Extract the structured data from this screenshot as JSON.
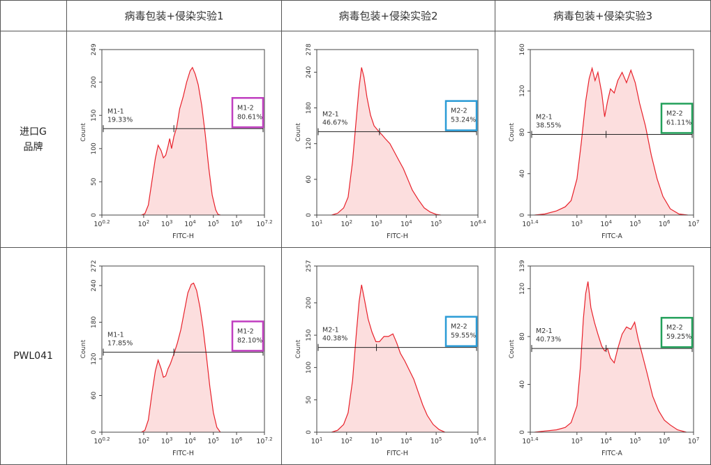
{
  "table": {
    "columns": [
      "病毒包装+侵染实验1",
      "病毒包装+侵染实验2",
      "病毒包装+侵染实验3"
    ],
    "rows": [
      {
        "label_line1": "进口G",
        "label_line2": "品牌"
      },
      {
        "label_line1": "PWL041",
        "label_line2": ""
      }
    ]
  },
  "colors": {
    "curve": "#e8202a",
    "fill": "#fcdede",
    "magenta": "#c03fc0",
    "blue": "#2a9bd6",
    "green": "#22a05a",
    "axis": "#444444"
  },
  "chart_data": [
    {
      "type": "area",
      "row": 0,
      "col": 0,
      "title": "",
      "xlabel": "FITC-H",
      "ylabel": "Count",
      "x_scale": "log10",
      "xlim_exp": [
        0.2,
        7.2
      ],
      "ylim": [
        0,
        249
      ],
      "x_ticks": [
        {
          "base": "10",
          "exp": "0.2"
        },
        {
          "base": "10",
          "exp": "2"
        },
        {
          "base": "10",
          "exp": "3"
        },
        {
          "base": "10",
          "exp": "4"
        },
        {
          "base": "10",
          "exp": "5"
        },
        {
          "base": "10",
          "exp": "6"
        },
        {
          "base": "10",
          "exp": "7.2"
        }
      ],
      "x_tick_pos": [
        0.2,
        2,
        3,
        4,
        5,
        6,
        7.2
      ],
      "y_ticks": [
        "0",
        "50",
        "100",
        "150",
        "200",
        "249"
      ],
      "y_tick_pos": [
        0,
        50,
        100,
        150,
        200,
        249
      ],
      "gate_y": 130,
      "gate_start": 0.2,
      "gate_split": 3.3,
      "gate_end": 7.2,
      "gate1": {
        "name": "M1-1",
        "percent": "19.33%"
      },
      "gate2": {
        "name": "M1-2",
        "percent": "80.61%",
        "box_color": "magenta"
      },
      "points": [
        [
          1.9,
          0
        ],
        [
          2.05,
          2
        ],
        [
          2.2,
          15
        ],
        [
          2.35,
          50
        ],
        [
          2.5,
          85
        ],
        [
          2.62,
          105
        ],
        [
          2.75,
          97
        ],
        [
          2.85,
          86
        ],
        [
          2.95,
          90
        ],
        [
          3.05,
          104
        ],
        [
          3.12,
          115
        ],
        [
          3.2,
          100
        ],
        [
          3.3,
          118
        ],
        [
          3.42,
          132
        ],
        [
          3.55,
          160
        ],
        [
          3.7,
          178
        ],
        [
          3.85,
          200
        ],
        [
          4.0,
          217
        ],
        [
          4.1,
          222
        ],
        [
          4.22,
          212
        ],
        [
          4.35,
          196
        ],
        [
          4.5,
          165
        ],
        [
          4.65,
          122
        ],
        [
          4.8,
          72
        ],
        [
          4.95,
          30
        ],
        [
          5.1,
          8
        ],
        [
          5.2,
          1
        ],
        [
          5.3,
          0
        ]
      ]
    },
    {
      "type": "area",
      "row": 0,
      "col": 1,
      "title": "",
      "xlabel": "FITC-H",
      "ylabel": "Count",
      "x_scale": "log10",
      "xlim_exp": [
        1,
        6.4
      ],
      "ylim": [
        0,
        278
      ],
      "x_ticks": [
        {
          "base": "10",
          "exp": "1"
        },
        {
          "base": "10",
          "exp": "2"
        },
        {
          "base": "10",
          "exp": "3"
        },
        {
          "base": "10",
          "exp": "4"
        },
        {
          "base": "10",
          "exp": "5"
        },
        {
          "base": "10",
          "exp": "6.4"
        }
      ],
      "x_tick_pos": [
        1,
        2,
        3,
        4,
        5,
        6.4
      ],
      "y_ticks": [
        "0",
        "60",
        "120",
        "180",
        "240",
        "278"
      ],
      "y_tick_pos": [
        0,
        60,
        120,
        180,
        240,
        278
      ],
      "gate_y": 140,
      "gate_start": 1,
      "gate_split": 3.1,
      "gate_end": 6.4,
      "gate1": {
        "name": "M2-1",
        "percent": "46.67%"
      },
      "gate2": {
        "name": "M2-2",
        "percent": "53.24%",
        "box_color": "blue"
      },
      "points": [
        [
          1.5,
          0
        ],
        [
          1.7,
          3
        ],
        [
          1.9,
          12
        ],
        [
          2.05,
          30
        ],
        [
          2.2,
          90
        ],
        [
          2.32,
          160
        ],
        [
          2.42,
          215
        ],
        [
          2.5,
          248
        ],
        [
          2.58,
          232
        ],
        [
          2.68,
          198
        ],
        [
          2.8,
          168
        ],
        [
          2.92,
          150
        ],
        [
          3.05,
          142
        ],
        [
          3.18,
          135
        ],
        [
          3.3,
          128
        ],
        [
          3.45,
          120
        ],
        [
          3.6,
          106
        ],
        [
          3.75,
          92
        ],
        [
          3.9,
          78
        ],
        [
          4.05,
          60
        ],
        [
          4.2,
          42
        ],
        [
          4.4,
          26
        ],
        [
          4.6,
          12
        ],
        [
          4.8,
          5
        ],
        [
          5.0,
          1
        ],
        [
          5.15,
          0
        ]
      ]
    },
    {
      "type": "area",
      "row": 0,
      "col": 2,
      "title": "",
      "xlabel": "FITC-A",
      "ylabel": "Count",
      "x_scale": "log10",
      "xlim_exp": [
        1.4,
        7
      ],
      "ylim": [
        0,
        160
      ],
      "x_ticks": [
        {
          "base": "10",
          "exp": "1.4"
        },
        {
          "base": "10",
          "exp": "3"
        },
        {
          "base": "10",
          "exp": "4"
        },
        {
          "base": "10",
          "exp": "5"
        },
        {
          "base": "10",
          "exp": "6"
        },
        {
          "base": "10",
          "exp": "7"
        }
      ],
      "x_tick_pos": [
        1.4,
        3,
        4,
        5,
        6,
        7
      ],
      "y_ticks": [
        "0",
        "40",
        "80",
        "120",
        "160"
      ],
      "y_tick_pos": [
        0,
        40,
        80,
        120,
        160
      ],
      "gate_y": 78,
      "gate_start": 1.4,
      "gate_split": 4.0,
      "gate_end": 7,
      "gate1": {
        "name": "M2-1",
        "percent": "38.55%"
      },
      "gate2": {
        "name": "M2-2",
        "percent": "61.11%",
        "box_color": "green"
      },
      "points": [
        [
          1.55,
          0
        ],
        [
          1.9,
          1
        ],
        [
          2.3,
          4
        ],
        [
          2.6,
          8
        ],
        [
          2.8,
          14
        ],
        [
          3.0,
          35
        ],
        [
          3.15,
          70
        ],
        [
          3.3,
          110
        ],
        [
          3.42,
          132
        ],
        [
          3.52,
          142
        ],
        [
          3.62,
          130
        ],
        [
          3.72,
          138
        ],
        [
          3.85,
          118
        ],
        [
          3.95,
          95
        ],
        [
          4.05,
          110
        ],
        [
          4.15,
          122
        ],
        [
          4.28,
          118
        ],
        [
          4.4,
          130
        ],
        [
          4.55,
          138
        ],
        [
          4.7,
          128
        ],
        [
          4.85,
          140
        ],
        [
          5.0,
          128
        ],
        [
          5.15,
          108
        ],
        [
          5.35,
          86
        ],
        [
          5.55,
          58
        ],
        [
          5.75,
          35
        ],
        [
          5.95,
          18
        ],
        [
          6.2,
          6
        ],
        [
          6.5,
          1
        ],
        [
          6.8,
          0
        ]
      ]
    },
    {
      "type": "area",
      "row": 1,
      "col": 0,
      "title": "",
      "xlabel": "FITC-H",
      "ylabel": "Count",
      "x_scale": "log10",
      "xlim_exp": [
        0.2,
        7.2
      ],
      "ylim": [
        0,
        272
      ],
      "x_ticks": [
        {
          "base": "10",
          "exp": "0.2"
        },
        {
          "base": "10",
          "exp": "2"
        },
        {
          "base": "10",
          "exp": "3"
        },
        {
          "base": "10",
          "exp": "4"
        },
        {
          "base": "10",
          "exp": "5"
        },
        {
          "base": "10",
          "exp": "6"
        },
        {
          "base": "10",
          "exp": "7.2"
        }
      ],
      "x_tick_pos": [
        0.2,
        2,
        3,
        4,
        5,
        6,
        7.2
      ],
      "y_ticks": [
        "0",
        "60",
        "120",
        "180",
        "240",
        "272"
      ],
      "y_tick_pos": [
        0,
        60,
        120,
        180,
        240,
        272
      ],
      "gate_y": 131,
      "gate_start": 0.2,
      "gate_split": 3.3,
      "gate_end": 7.2,
      "gate1": {
        "name": "M1-1",
        "percent": "17.85%"
      },
      "gate2": {
        "name": "M1-2",
        "percent": "82.10%",
        "box_color": "magenta"
      },
      "points": [
        [
          1.9,
          0
        ],
        [
          2.05,
          3
        ],
        [
          2.2,
          20
        ],
        [
          2.35,
          62
        ],
        [
          2.5,
          100
        ],
        [
          2.62,
          118
        ],
        [
          2.75,
          104
        ],
        [
          2.85,
          90
        ],
        [
          2.95,
          92
        ],
        [
          3.05,
          104
        ],
        [
          3.15,
          112
        ],
        [
          3.3,
          128
        ],
        [
          3.45,
          146
        ],
        [
          3.6,
          168
        ],
        [
          3.75,
          198
        ],
        [
          3.9,
          228
        ],
        [
          4.05,
          242
        ],
        [
          4.15,
          244
        ],
        [
          4.28,
          232
        ],
        [
          4.42,
          205
        ],
        [
          4.55,
          172
        ],
        [
          4.7,
          125
        ],
        [
          4.85,
          74
        ],
        [
          5.0,
          32
        ],
        [
          5.15,
          8
        ],
        [
          5.3,
          0
        ]
      ]
    },
    {
      "type": "area",
      "row": 1,
      "col": 1,
      "title": "",
      "xlabel": "FITC-H",
      "ylabel": "Count",
      "x_scale": "log10",
      "xlim_exp": [
        1,
        6.4
      ],
      "ylim": [
        0,
        257
      ],
      "x_ticks": [
        {
          "base": "10",
          "exp": "1"
        },
        {
          "base": "10",
          "exp": "2"
        },
        {
          "base": "10",
          "exp": "3"
        },
        {
          "base": "10",
          "exp": "4"
        },
        {
          "base": "10",
          "exp": "5"
        },
        {
          "base": "10",
          "exp": "6.4"
        }
      ],
      "x_tick_pos": [
        1,
        2,
        3,
        4,
        5,
        6.4
      ],
      "y_ticks": [
        "0",
        "50",
        "100",
        "150",
        "200",
        "257"
      ],
      "y_tick_pos": [
        0,
        50,
        100,
        150,
        200,
        257
      ],
      "gate_y": 131,
      "gate_start": 1,
      "gate_split": 3.0,
      "gate_end": 6.4,
      "gate1": {
        "name": "M2-1",
        "percent": "40.38%"
      },
      "gate2": {
        "name": "M2-2",
        "percent": "59.55%",
        "box_color": "blue"
      },
      "points": [
        [
          1.5,
          0
        ],
        [
          1.7,
          3
        ],
        [
          1.9,
          12
        ],
        [
          2.05,
          30
        ],
        [
          2.2,
          80
        ],
        [
          2.32,
          150
        ],
        [
          2.42,
          202
        ],
        [
          2.5,
          228
        ],
        [
          2.6,
          205
        ],
        [
          2.72,
          175
        ],
        [
          2.85,
          155
        ],
        [
          2.98,
          140
        ],
        [
          3.1,
          140
        ],
        [
          3.25,
          148
        ],
        [
          3.4,
          148
        ],
        [
          3.55,
          152
        ],
        [
          3.68,
          138
        ],
        [
          3.8,
          122
        ],
        [
          3.95,
          110
        ],
        [
          4.1,
          96
        ],
        [
          4.25,
          82
        ],
        [
          4.4,
          62
        ],
        [
          4.55,
          42
        ],
        [
          4.7,
          26
        ],
        [
          4.9,
          12
        ],
        [
          5.1,
          4
        ],
        [
          5.3,
          0
        ]
      ]
    },
    {
      "type": "area",
      "row": 1,
      "col": 2,
      "title": "",
      "xlabel": "FITC-A",
      "ylabel": "Count",
      "x_scale": "log10",
      "xlim_exp": [
        1.4,
        7
      ],
      "ylim": [
        0,
        139
      ],
      "x_ticks": [
        {
          "base": "10",
          "exp": "1.4"
        },
        {
          "base": "10",
          "exp": "3"
        },
        {
          "base": "10",
          "exp": "4"
        },
        {
          "base": "10",
          "exp": "5"
        },
        {
          "base": "10",
          "exp": "6"
        },
        {
          "base": "10",
          "exp": "7"
        }
      ],
      "x_tick_pos": [
        1.4,
        3,
        4,
        5,
        6,
        7
      ],
      "y_ticks": [
        "0",
        "40",
        "80",
        "120",
        "139"
      ],
      "y_tick_pos": [
        0,
        40,
        80,
        120,
        139
      ],
      "gate_y": 70,
      "gate_start": 1.4,
      "gate_split": 4.0,
      "gate_end": 7,
      "gate1": {
        "name": "M2-1",
        "percent": "40.73%"
      },
      "gate2": {
        "name": "M2-2",
        "percent": "59.25%",
        "box_color": "green"
      },
      "points": [
        [
          1.55,
          0
        ],
        [
          1.9,
          1
        ],
        [
          2.3,
          2
        ],
        [
          2.6,
          4
        ],
        [
          2.8,
          8
        ],
        [
          3.0,
          22
        ],
        [
          3.12,
          55
        ],
        [
          3.22,
          95
        ],
        [
          3.3,
          116
        ],
        [
          3.38,
          126
        ],
        [
          3.48,
          104
        ],
        [
          3.6,
          92
        ],
        [
          3.72,
          82
        ],
        [
          3.85,
          72
        ],
        [
          3.95,
          68
        ],
        [
          4.05,
          70
        ],
        [
          4.15,
          62
        ],
        [
          4.28,
          58
        ],
        [
          4.4,
          70
        ],
        [
          4.55,
          82
        ],
        [
          4.7,
          88
        ],
        [
          4.85,
          86
        ],
        [
          4.98,
          92
        ],
        [
          5.1,
          78
        ],
        [
          5.25,
          64
        ],
        [
          5.4,
          50
        ],
        [
          5.6,
          30
        ],
        [
          5.8,
          18
        ],
        [
          6.0,
          10
        ],
        [
          6.2,
          6
        ],
        [
          6.45,
          2
        ],
        [
          6.75,
          0
        ]
      ]
    }
  ]
}
